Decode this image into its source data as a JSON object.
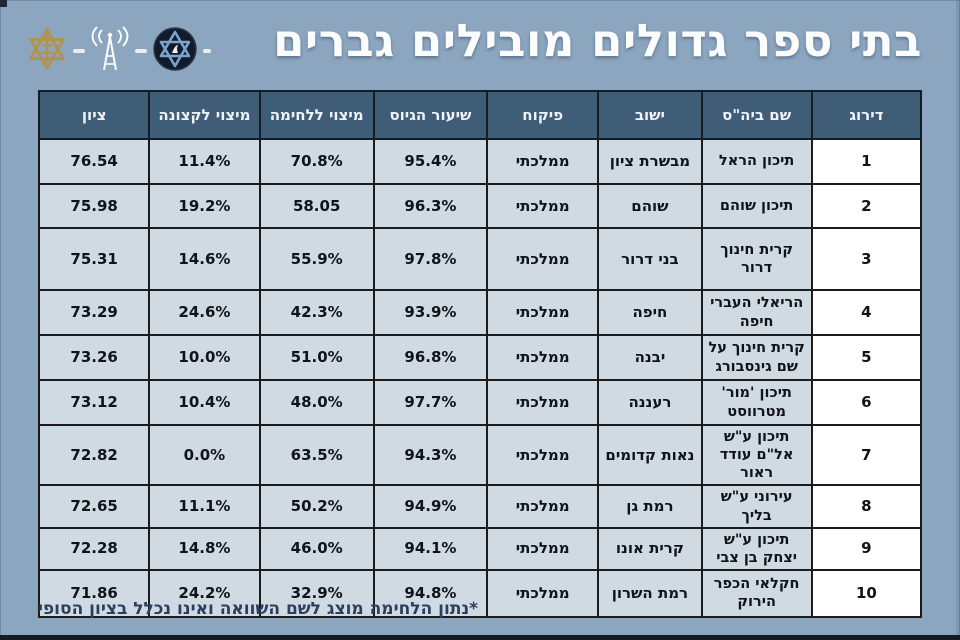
{
  "page": {
    "title": "בתי ספר גדולים מובילים גברים",
    "footnote": "*נתון הלחימה מוצג לשם השוואה ואינו נכלל בציון הסופי"
  },
  "icons": {
    "idf": "idf-insignia",
    "antenna": "broadcast-antenna",
    "station": "army-radio-round-emblem",
    "separator": "dash"
  },
  "colors": {
    "background": "#8ca6c0",
    "header_bg": "#3f5d77",
    "cell_bg": "#cfdae3",
    "rank_cell_bg": "#ffffff",
    "border": "#1b1b1b",
    "title_text": "#fbfcfd",
    "footnote_text": "#2c3e5d",
    "idf_gold": "#b3924d",
    "emblem_navy": "#111b2a",
    "emblem_star_blue": "#7ba3cc"
  },
  "chart_data": {
    "type": "table",
    "title": "בתי ספר גדולים מובילים גברים",
    "footnote": "*נתון הלחימה מוצג לשם השוואה ואינו נכלל בציון הסופי",
    "columns": [
      "דירוג",
      "שם ביה\"ס",
      "ישוב",
      "פיקוח",
      "שיעור הגיוס",
      "מיצוי ללחימה",
      "מיצוי לקצונה",
      "ציון"
    ],
    "rows": [
      [
        "1",
        "תיכון הראל",
        "מבשרת ציון",
        "ממלכתי",
        "95.4%",
        "70.8%",
        "11.4%",
        "76.54"
      ],
      [
        "2",
        "תיכון שוהם",
        "שוהם",
        "ממלכתי",
        "96.3%",
        "58.05",
        "19.2%",
        "75.98"
      ],
      [
        "3",
        "קרית חינוך דרור",
        "בני דרור",
        "ממלכתי",
        "97.8%",
        "55.9%",
        "14.6%",
        "75.31"
      ],
      [
        "4",
        "הריאלי העברי חיפה",
        "חיפה",
        "ממלכתי",
        "93.9%",
        "42.3%",
        "24.6%",
        "73.29"
      ],
      [
        "5",
        "קרית חינוך על שם גינסבורג",
        "יבנה",
        "ממלכתי",
        "96.8%",
        "51.0%",
        "10.0%",
        "73.26"
      ],
      [
        "6",
        "תיכון 'מור' מטרווסט",
        "רעננה",
        "ממלכתי",
        "97.7%",
        "48.0%",
        "10.4%",
        "73.12"
      ],
      [
        "7",
        "תיכון ע\"ש אל\"ם עודד ראור",
        "נאות קדומים",
        "ממלכתי",
        "94.3%",
        "63.5%",
        "0.0%",
        "72.82"
      ],
      [
        "8",
        "עירוני ע\"ש בליך",
        "רמת גן",
        "ממלכתי",
        "94.9%",
        "50.2%",
        "11.1%",
        "72.65"
      ],
      [
        "9",
        "תיכון ע\"ש יצחק בן צבי",
        "קרית אונו",
        "ממלכתי",
        "94.1%",
        "46.0%",
        "14.8%",
        "72.28"
      ],
      [
        "10",
        "חקלאי הכפר הירוק",
        "רמת השרון",
        "ממלכתי",
        "94.8%",
        "32.9%",
        "24.2%",
        "71.86"
      ]
    ]
  }
}
